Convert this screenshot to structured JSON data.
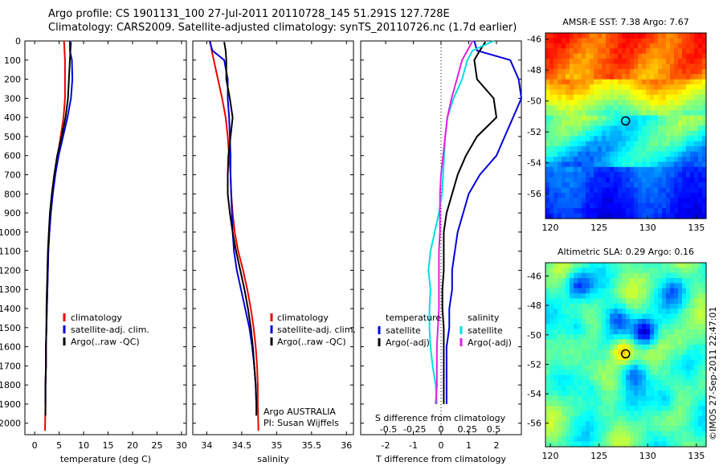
{
  "title": {
    "line1": "Argo profile: CS 1901131_100 27-Jul-2011 20110728_145 51.291S 127.728E",
    "line2": "Climatology: CARS2009. Satellite-adjusted climatology: synTS_20110726.nc (1.7d earlier)"
  },
  "depth_ticks": [
    0,
    100,
    200,
    300,
    400,
    500,
    600,
    700,
    800,
    900,
    1000,
    1100,
    1200,
    1300,
    1400,
    1500,
    1600,
    1700,
    1800,
    1900,
    2000
  ],
  "chart_data": [
    {
      "id": "temperature",
      "type": "line",
      "xlabel": "temperature (deg C)",
      "xlim": [
        -2,
        31
      ],
      "ylim": [
        2060,
        0
      ],
      "xticks": [
        0,
        5,
        10,
        15,
        20,
        25,
        30
      ],
      "legend": [
        "climatology",
        "satellite-adj. clim.",
        "Argo(..raw -QC)"
      ],
      "series": [
        {
          "name": "climatology",
          "color": "#ee0000",
          "x": [
            6.0,
            6.1,
            6.2,
            6.2,
            6.2,
            5.9,
            5.3,
            4.7,
            4.2,
            3.7,
            3.3,
            3.0,
            2.8,
            2.7,
            2.6,
            2.5,
            2.4,
            2.3,
            2.3,
            2.2,
            2.2,
            2.1
          ],
          "y": [
            0,
            50,
            100,
            200,
            300,
            400,
            500,
            600,
            700,
            800,
            900,
            1000,
            1100,
            1200,
            1300,
            1400,
            1500,
            1600,
            1700,
            1800,
            1900,
            2040
          ]
        },
        {
          "name": "satellite-adj. clim.",
          "color": "#0000dd",
          "x": [
            7.2,
            7.2,
            7.6,
            7.7,
            7.4,
            6.7,
            5.8,
            4.9,
            4.2,
            3.7,
            3.3,
            3.0,
            2.8,
            2.7,
            2.6,
            2.5,
            2.4,
            2.3,
            2.3,
            2.2,
            2.2
          ],
          "y": [
            0,
            50,
            100,
            200,
            300,
            400,
            500,
            600,
            700,
            800,
            900,
            1000,
            1100,
            1200,
            1300,
            1400,
            1500,
            1600,
            1700,
            1800,
            1900
          ]
        },
        {
          "name": "Argo(..raw -QC)",
          "color": "#000000",
          "x": [
            7.4,
            7.3,
            7.2,
            7.0,
            6.8,
            6.3,
            5.5,
            4.6,
            4.0,
            3.5,
            3.1,
            2.9,
            2.7,
            2.6,
            2.5,
            2.4,
            2.4,
            2.3,
            2.3,
            2.2,
            2.2,
            2.2
          ],
          "y": [
            5,
            50,
            100,
            200,
            300,
            400,
            500,
            600,
            700,
            800,
            900,
            1000,
            1100,
            1200,
            1300,
            1400,
            1500,
            1600,
            1700,
            1800,
            1900,
            1960
          ]
        }
      ]
    },
    {
      "id": "salinity",
      "type": "line",
      "xlabel": "salinity",
      "xlim": [
        33.8,
        36.1
      ],
      "ylim": [
        2060,
        0
      ],
      "xticks": [
        34,
        34.5,
        35,
        35.5,
        36
      ],
      "xtick_labels": [
        "34",
        "34.5",
        "35",
        "35.5",
        "36"
      ],
      "legend": [
        "climatology",
        "satellite-adj. clim.",
        "Argo(..raw -QC)"
      ],
      "annotation": [
        "Argo AUSTRALIA",
        "PI: Susan Wijffels"
      ],
      "series": [
        {
          "name": "climatology",
          "color": "#ee0000",
          "x": [
            34.05,
            34.07,
            34.1,
            34.16,
            34.22,
            34.27,
            34.3,
            34.32,
            34.34,
            34.35,
            34.37,
            34.4,
            34.45,
            34.52,
            34.58,
            34.63,
            34.67,
            34.7,
            34.72,
            34.73,
            34.73,
            34.74
          ],
          "y": [
            0,
            50,
            100,
            200,
            300,
            400,
            500,
            600,
            700,
            800,
            900,
            1000,
            1100,
            1200,
            1300,
            1400,
            1500,
            1600,
            1700,
            1800,
            1900,
            2040
          ]
        },
        {
          "name": "satellite-adj. clim.",
          "color": "#0000dd",
          "x": [
            34.04,
            34.08,
            34.25,
            34.3,
            34.3,
            34.32,
            34.33,
            34.34,
            34.34,
            34.35,
            34.36,
            34.37,
            34.39,
            34.43,
            34.49,
            34.55,
            34.61,
            34.65,
            34.68,
            34.7,
            34.71
          ],
          "y": [
            0,
            50,
            100,
            200,
            300,
            400,
            500,
            600,
            700,
            800,
            900,
            1000,
            1100,
            1200,
            1300,
            1400,
            1500,
            1600,
            1700,
            1800,
            1900
          ]
        },
        {
          "name": "Argo(..raw -QC)",
          "color": "#000000",
          "x": [
            34.25,
            34.27,
            34.28,
            34.28,
            34.33,
            34.37,
            34.34,
            34.31,
            34.3,
            34.3,
            34.33,
            34.37,
            34.42,
            34.48,
            34.54,
            34.59,
            34.63,
            34.66,
            34.68,
            34.7,
            34.71,
            34.71
          ],
          "y": [
            5,
            50,
            100,
            200,
            300,
            400,
            500,
            600,
            700,
            800,
            900,
            1000,
            1100,
            1200,
            1300,
            1400,
            1500,
            1600,
            1700,
            1800,
            1900,
            1960
          ]
        }
      ]
    },
    {
      "id": "difference",
      "type": "line",
      "xlabel": "T difference from climatology",
      "xlabel2": "S difference from climatology",
      "xlim": [
        -2.9,
        2.9
      ],
      "ylim": [
        2060,
        0
      ],
      "xticks": [
        -2,
        -1,
        0,
        1,
        2
      ],
      "s_ticks": [
        -0.5,
        -0.25,
        0,
        0.25,
        0.5
      ],
      "s_tick_labels": [
        "-0.5",
        "-0.25",
        "0",
        "0.25",
        "0.5"
      ],
      "legend_header": [
        "temperature",
        "salinity"
      ],
      "legend": [
        "satellite",
        "Argo(-adj)",
        "satellite",
        "Argo(-adj)"
      ],
      "series": [
        {
          "name": "T satellite",
          "color": "#0000dd",
          "x": [
            1.2,
            1.3,
            2.5,
            2.8,
            2.9,
            2.6,
            2.3,
            2.0,
            1.4,
            1.0,
            0.8,
            0.6,
            0.5,
            0.4,
            0.4,
            0.3,
            0.3,
            0.2,
            0.2,
            0.2,
            0.2
          ],
          "y": [
            0,
            50,
            100,
            200,
            300,
            400,
            500,
            600,
            700,
            800,
            900,
            1000,
            1100,
            1200,
            1300,
            1400,
            1500,
            1600,
            1700,
            1800,
            1900
          ]
        },
        {
          "name": "T Argo(-adj)",
          "color": "#000000",
          "x": [
            1.6,
            1.4,
            1.2,
            1.3,
            1.9,
            2.0,
            1.3,
            0.9,
            0.6,
            0.4,
            0.2,
            0.1,
            0.1,
            0.1,
            0.05,
            0.05,
            0.1,
            0.1,
            0.1,
            0.1,
            0.1
          ],
          "y": [
            5,
            50,
            100,
            200,
            300,
            400,
            500,
            600,
            700,
            800,
            900,
            1000,
            1100,
            1200,
            1300,
            1400,
            1500,
            1600,
            1700,
            1800,
            1900
          ]
        },
        {
          "name": "S satellite",
          "color": "#00e0e0",
          "x": [
            0.5,
            0.3,
            0.25,
            0.2,
            0.12,
            0.06,
            0.04,
            0.03,
            0.02,
            0.01,
            -0.02,
            -0.06,
            -0.1,
            -0.12,
            -0.1,
            -0.11,
            -0.11,
            -0.1,
            -0.08,
            -0.05,
            -0.04
          ],
          "y": [
            0,
            50,
            100,
            200,
            300,
            400,
            500,
            600,
            700,
            800,
            900,
            1000,
            1100,
            1200,
            1300,
            1400,
            1500,
            1600,
            1700,
            1800,
            1900
          ]
        },
        {
          "name": "S Argo(-adj)",
          "color": "#e020e0",
          "x": [
            0.3,
            0.25,
            0.2,
            0.15,
            0.1,
            0.06,
            0.04,
            0.02,
            0.0,
            -0.01,
            -0.01,
            -0.01,
            -0.02,
            -0.02,
            -0.02,
            -0.02,
            -0.03,
            -0.04,
            -0.04,
            -0.04,
            -0.05
          ],
          "y": [
            0,
            50,
            100,
            200,
            300,
            400,
            500,
            600,
            700,
            800,
            900,
            1000,
            1100,
            1200,
            1300,
            1400,
            1500,
            1600,
            1700,
            1800,
            1900
          ]
        }
      ]
    },
    {
      "id": "sst_map",
      "type": "heatmap",
      "title": "AMSR-E SST: 7.38 Argo: 7.67",
      "xlim": [
        119.5,
        136
      ],
      "ylim": [
        -57.6,
        -45.6
      ],
      "xticks": [
        120,
        125,
        130,
        135
      ],
      "yticks": [
        -46,
        -48,
        -50,
        -52,
        -54,
        -56
      ],
      "marker": {
        "lon": 127.728,
        "lat": -51.291
      }
    },
    {
      "id": "sla_map",
      "type": "heatmap",
      "title": "Altimetric SLA: 0.29 Argo: 0.16",
      "xlim": [
        119.5,
        136
      ],
      "ylim": [
        -57.6,
        -45.1
      ],
      "xticks": [
        120,
        125,
        130,
        135
      ],
      "yticks": [
        -46,
        -48,
        -50,
        -52,
        -54,
        -56
      ],
      "marker": {
        "lon": 127.728,
        "lat": -51.291
      }
    }
  ],
  "credit": "©IMOS 27-Sep-2011 22:47:01"
}
